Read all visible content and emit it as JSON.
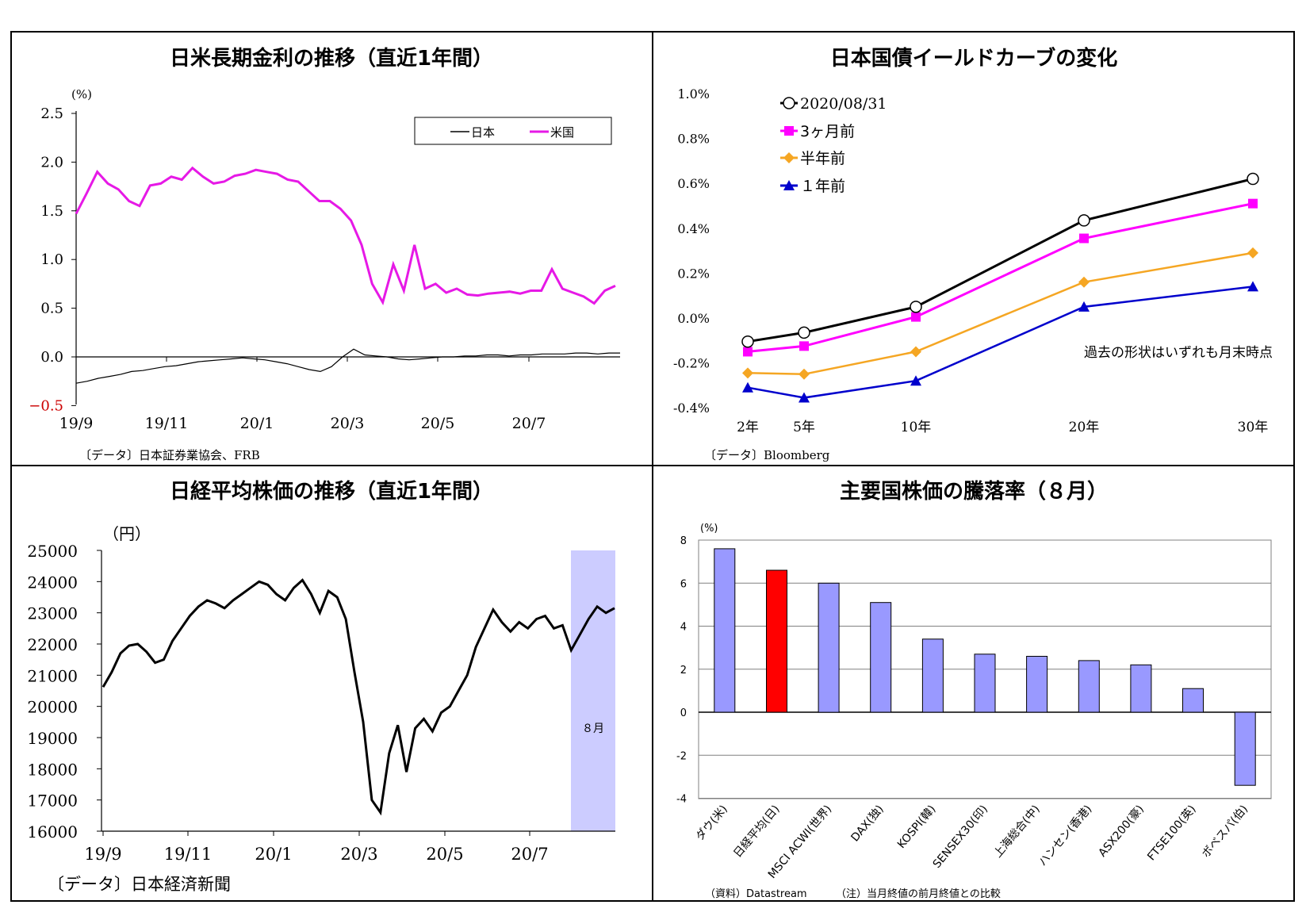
{
  "chart_data": [
    {
      "type": "line",
      "title": "日米長期金利の推移（直近1年間）",
      "ylabel": "(%)",
      "yticks": [
        "2.5",
        "2.0",
        "1.5",
        "1.0",
        "0.5",
        "0.0",
        "−0.5"
      ],
      "ylim": [
        -0.5,
        2.5
      ],
      "xticks": [
        "19/9",
        "19/11",
        "20/1",
        "20/3",
        "20/5",
        "20/7"
      ],
      "legend_position": "top-right",
      "source": "〔データ〕日本証券業協会、FRB",
      "series": [
        {
          "name": "日本",
          "color": "#000000",
          "values": [
            -0.27,
            -0.25,
            -0.22,
            -0.2,
            -0.18,
            -0.15,
            -0.14,
            -0.12,
            -0.1,
            -0.09,
            -0.07,
            -0.05,
            -0.04,
            -0.03,
            -0.02,
            -0.01,
            -0.02,
            -0.03,
            -0.05,
            -0.07,
            -0.1,
            -0.13,
            -0.15,
            -0.1,
            0.0,
            0.08,
            0.02,
            0.01,
            0.0,
            -0.02,
            -0.03,
            -0.02,
            -0.01,
            0.0,
            0.0,
            0.01,
            0.01,
            0.02,
            0.02,
            0.01,
            0.02,
            0.02,
            0.03,
            0.03,
            0.03,
            0.04,
            0.04,
            0.03,
            0.04,
            0.04
          ]
        },
        {
          "name": "米国",
          "color": "#e619e6",
          "values": [
            1.47,
            1.68,
            1.9,
            1.78,
            1.72,
            1.6,
            1.55,
            1.76,
            1.78,
            1.85,
            1.82,
            1.94,
            1.85,
            1.78,
            1.8,
            1.86,
            1.88,
            1.92,
            1.9,
            1.88,
            1.82,
            1.8,
            1.7,
            1.6,
            1.6,
            1.52,
            1.4,
            1.15,
            0.75,
            0.56,
            0.95,
            0.68,
            1.15,
            0.7,
            0.75,
            0.66,
            0.7,
            0.64,
            0.63,
            0.65,
            0.66,
            0.67,
            0.65,
            0.68,
            0.68,
            0.9,
            0.7,
            0.66,
            0.62,
            0.55,
            0.68,
            0.73
          ]
        }
      ]
    },
    {
      "type": "line",
      "title": "日本国債イールドカーブの変化",
      "yticks": [
        "1.0%",
        "0.8%",
        "0.6%",
        "0.4%",
        "0.2%",
        "0.0%",
        "-0.2%",
        "-0.4%"
      ],
      "ylim": [
        -0.4,
        1.0
      ],
      "categories": [
        "2年",
        "5年",
        "10年",
        "20年",
        "30年"
      ],
      "x": [
        2,
        5,
        10,
        20,
        30
      ],
      "annotation": "過去の形状はいずれも月末時点",
      "legend_position": "top-left",
      "source": "〔データ〕Bloomberg",
      "series": [
        {
          "name": "2020/08/31",
          "color": "#000000",
          "marker": "circle",
          "values": [
            -0.105,
            -0.065,
            0.05,
            0.435,
            0.62
          ]
        },
        {
          "name": "3ヶ月前",
          "color": "#ff00ff",
          "marker": "square",
          "values": [
            -0.15,
            -0.125,
            0.005,
            0.355,
            0.51
          ]
        },
        {
          "name": "半年前",
          "color": "#f5a623",
          "marker": "diamond",
          "values": [
            -0.245,
            -0.25,
            -0.15,
            0.16,
            0.29
          ]
        },
        {
          "name": "１年前",
          "color": "#0000cc",
          "marker": "triangle",
          "values": [
            -0.31,
            -0.355,
            -0.28,
            0.05,
            0.14
          ]
        }
      ]
    },
    {
      "type": "line",
      "title": "日経平均株価の推移（直近1年間）",
      "ylabel": "（円）",
      "yticks": [
        "25000",
        "24000",
        "23000",
        "22000",
        "21000",
        "20000",
        "19000",
        "18000",
        "17000",
        "16000"
      ],
      "ylim": [
        16000,
        25000
      ],
      "xticks": [
        "19/9",
        "19/11",
        "20/1",
        "20/3",
        "20/5",
        "20/7"
      ],
      "shaded_label": "８月",
      "source": "〔データ〕日本経済新聞",
      "series": [
        {
          "name": "",
          "color": "#000000",
          "values": [
            20620,
            21100,
            21700,
            21950,
            22000,
            21750,
            21400,
            21500,
            22100,
            22500,
            22900,
            23200,
            23400,
            23300,
            23150,
            23400,
            23600,
            23800,
            24000,
            23900,
            23600,
            23400,
            23800,
            24050,
            23600,
            23000,
            23700,
            23500,
            22800,
            21100,
            19500,
            17000,
            16600,
            18500,
            19400,
            17900,
            19300,
            19600,
            19200,
            19800,
            20000,
            20500,
            21000,
            21900,
            22500,
            23100,
            22700,
            22400,
            22700,
            22500,
            22800,
            22900,
            22500,
            22600,
            21800,
            22300,
            22800,
            23200,
            23000,
            23150
          ]
        }
      ]
    },
    {
      "type": "bar",
      "title": "主要国株価の騰落率（８月）",
      "ylabel": "(%)",
      "ylim": [
        -4,
        8
      ],
      "yticks": [
        "8",
        "6",
        "4",
        "2",
        "0",
        "-2",
        "-4"
      ],
      "categories": [
        "ダウ(米)",
        "日経平均(日)",
        "MSCI ACWI(世界)",
        "DAX(独)",
        "KOSPI(韓)",
        "SENSEX30(印)",
        "上海総合(中)",
        "ハンセン(香港)",
        "ASX200(豪)",
        "FTSE100(英)",
        "ボベスパ(伯)"
      ],
      "values": [
        7.6,
        6.6,
        6.0,
        5.1,
        3.4,
        2.7,
        2.6,
        2.4,
        2.2,
        1.1,
        -3.4
      ],
      "highlight_color": "#ff0000",
      "bar_color": "#9999ff",
      "source": "（資料）Datastream",
      "note": "（注）当月終値の前月終値との比較"
    }
  ]
}
